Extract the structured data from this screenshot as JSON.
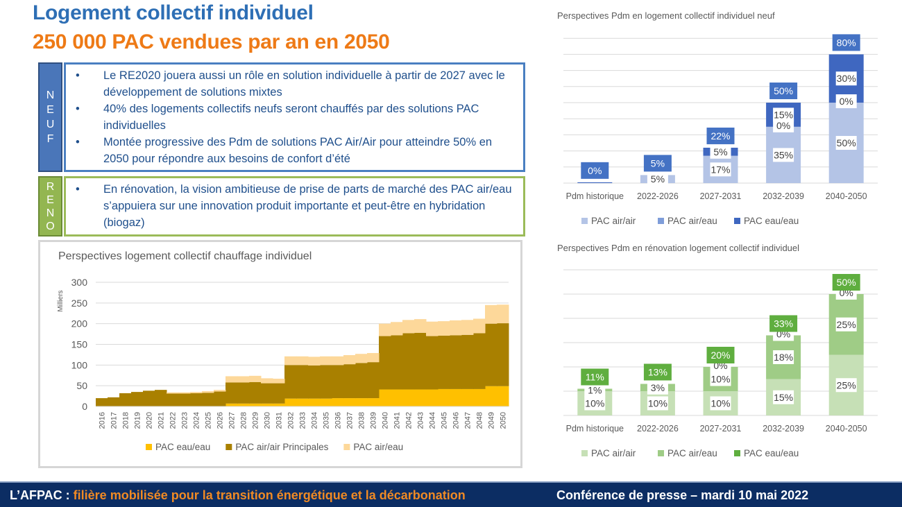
{
  "slide": {
    "title": "Logement collectif individuel",
    "subtitle": "250 000 PAC vendues par an en 2050"
  },
  "neuf": {
    "label": [
      "N",
      "E",
      "U",
      "F"
    ],
    "bullets": [
      "Le RE2020 jouera aussi un rôle en solution individuelle à partir de 2027 avec le développement de solutions mixtes",
      "40% des logements collectifs neufs seront chauffés par des solutions PAC individuelles",
      "Montée progressive des Pdm de solutions PAC Air/Air pour atteindre 50% en 2050 pour répondre aux besoins de confort d’été"
    ]
  },
  "reno": {
    "label": [
      "R",
      "E",
      "N",
      "O"
    ],
    "bullets": [
      "En rénovation, la vision ambitieuse de prise de parts de marché des PAC air/eau s’appuiera sur une innovation produit importante et peut-être en hybridation (biogaz)"
    ]
  },
  "footer": {
    "org": "L’AFPAC : ",
    "tagline": "filière mobilisée pour la transition énergétique et la décarbonation",
    "event": "Conférence de presse – mardi 10 mai 2022"
  },
  "chart_data": [
    {
      "type": "area",
      "stacked": true,
      "title": "Perspectives logement collectif chauffage individuel",
      "ylabel": "Milliers",
      "ylim": [
        0,
        300
      ],
      "yticks": [
        0,
        50,
        100,
        150,
        200,
        250,
        300
      ],
      "grid": true,
      "legend": "bottom",
      "categories": [
        "2016",
        "2017",
        "2018",
        "2019",
        "2020",
        "2021",
        "2022",
        "2023",
        "2024",
        "2025",
        "2026",
        "2027",
        "2028",
        "2029",
        "2030",
        "2031",
        "2032",
        "2033",
        "2034",
        "2035",
        "2036",
        "2037",
        "2038",
        "2039",
        "2040",
        "2041",
        "2042",
        "2043",
        "2044",
        "2045",
        "2046",
        "2047",
        "2048",
        "2049",
        "2050"
      ],
      "series": [
        {
          "name": "PAC eau/eau",
          "color": "#ffc000",
          "values": [
            0,
            0,
            0,
            0,
            0,
            0,
            0,
            0,
            0,
            0,
            0,
            7,
            7,
            7,
            7,
            7,
            19,
            19,
            19,
            19,
            20,
            20,
            20,
            20,
            41,
            41,
            41,
            41,
            41,
            42,
            42,
            42,
            42,
            49,
            49
          ]
        },
        {
          "name": "PAC air/air Principales",
          "color": "#a98000",
          "values": [
            20,
            22,
            32,
            35,
            38,
            40,
            31,
            31,
            32,
            33,
            36,
            51,
            51,
            52,
            49,
            49,
            81,
            81,
            80,
            81,
            80,
            82,
            85,
            87,
            129,
            131,
            136,
            137,
            129,
            129,
            130,
            131,
            135,
            151,
            152
          ]
        },
        {
          "name": "PAC air/eau",
          "color": "#fdd89a",
          "values": [
            0,
            0,
            0,
            0,
            0,
            0,
            3,
            3,
            3,
            4,
            4,
            15,
            15,
            15,
            12,
            11,
            21,
            21,
            21,
            21,
            21,
            22,
            22,
            22,
            30,
            32,
            32,
            33,
            35,
            35,
            36,
            36,
            35,
            45,
            45
          ]
        }
      ]
    },
    {
      "type": "bar",
      "stacked": true,
      "title": "Perspectives Pdm en logement collectif individuel neuf",
      "ylim": [
        0,
        90
      ],
      "grid": true,
      "legend": "bottom",
      "total_color": "#4472c4",
      "categories": [
        "Pdm historique",
        "2022-2026",
        "2027-2031",
        "2032-2039",
        "2040-2050"
      ],
      "totals": [
        "0%",
        "5%",
        "22%",
        "50%",
        "80%"
      ],
      "series": [
        {
          "name": "PAC air/air",
          "color": "#b4c4e6",
          "values": [
            0,
            5,
            17,
            35,
            50
          ],
          "labels": [
            null,
            "5%",
            "17%",
            "35%",
            "50%"
          ]
        },
        {
          "name": "PAC air/eau",
          "color": "#7f9dd9",
          "values": [
            0,
            0,
            0,
            0,
            0
          ],
          "labels": [
            null,
            null,
            null,
            "0%",
            "0%"
          ]
        },
        {
          "name": "PAC eau/eau",
          "color": "#3f67c0",
          "values": [
            0.5,
            0,
            5,
            15,
            30
          ],
          "labels": [
            null,
            null,
            "5%",
            "15%",
            "30%"
          ]
        }
      ]
    },
    {
      "type": "bar",
      "stacked": true,
      "title": "Perspectives Pdm en rénovation logement collectif individuel",
      "ylim": [
        0,
        60
      ],
      "grid": true,
      "legend": "bottom",
      "total_color": "#5fae3f",
      "categories": [
        "Pdm historique",
        "2022-2026",
        "2027-2031",
        "2032-2039",
        "2040-2050"
      ],
      "totals": [
        "11%",
        "13%",
        "20%",
        "33%",
        "50%"
      ],
      "series": [
        {
          "name": "PAC air/air",
          "color": "#c6e0b6",
          "values": [
            10,
            10,
            10,
            15,
            25
          ],
          "labels": [
            "10%",
            "10%",
            "10%",
            "15%",
            "25%"
          ]
        },
        {
          "name": "PAC air/eau",
          "color": "#9fcc86",
          "values": [
            1,
            3,
            10,
            18,
            25
          ],
          "labels": [
            "1%",
            "3%",
            "10%",
            "18%",
            "25%"
          ]
        },
        {
          "name": "PAC eau/eau",
          "color": "#5fae3f",
          "values": [
            0,
            0,
            0,
            0,
            0
          ],
          "labels": [
            null,
            null,
            "0%",
            "0%",
            "0%"
          ]
        }
      ]
    }
  ]
}
